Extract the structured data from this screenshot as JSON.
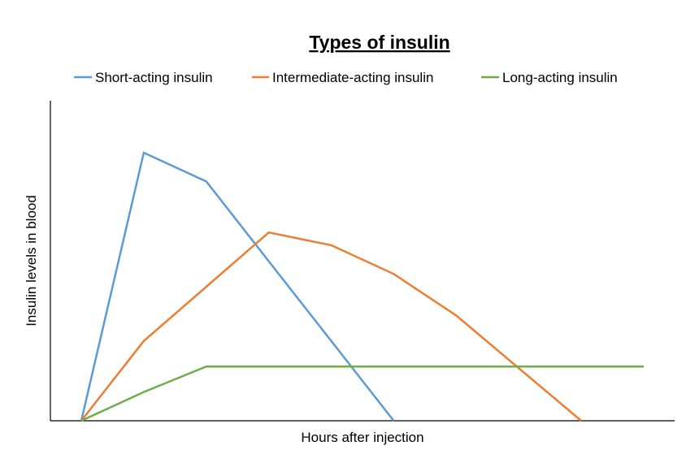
{
  "chart_data": {
    "type": "line",
    "title": "Types of insulin",
    "xlabel": "Hours after injection",
    "ylabel": "Insulin levels in blood",
    "xlim": [
      0,
      9.2
    ],
    "ylim": [
      0,
      1.0
    ],
    "grid": false,
    "legend_position": "top",
    "series": [
      {
        "name": "Short-acting insulin",
        "color": "#5b9bd5",
        "points": [
          [
            0,
            0
          ],
          [
            1,
            0.84
          ],
          [
            2,
            0.75
          ],
          [
            5,
            0
          ]
        ]
      },
      {
        "name": "Intermediate-acting insulin",
        "color": "#ed7d31",
        "points": [
          [
            0,
            0
          ],
          [
            1,
            0.25
          ],
          [
            2,
            0.42
          ],
          [
            3,
            0.59
          ],
          [
            4,
            0.55
          ],
          [
            5,
            0.46
          ],
          [
            6,
            0.33
          ],
          [
            8,
            0
          ]
        ]
      },
      {
        "name": "Long-acting insulin",
        "color": "#70ad47",
        "points": [
          [
            0,
            0
          ],
          [
            1,
            0.09
          ],
          [
            2,
            0.17
          ],
          [
            9,
            0.17
          ]
        ]
      }
    ]
  }
}
